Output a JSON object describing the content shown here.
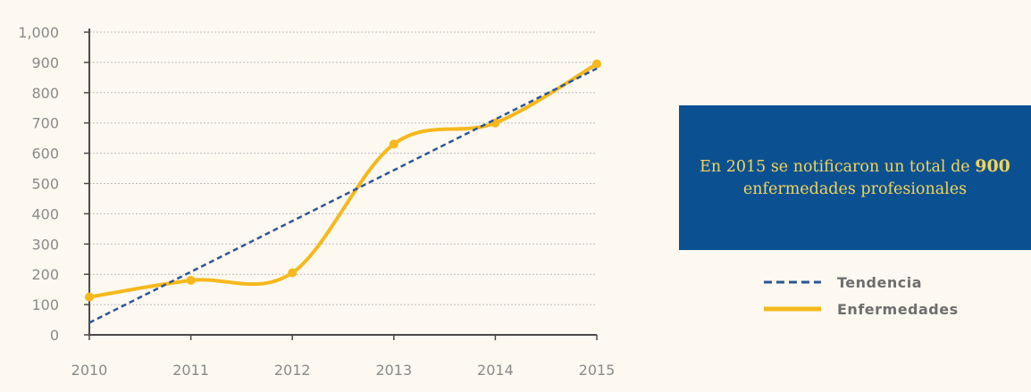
{
  "chart_data": {
    "type": "line",
    "x": [
      "2010",
      "2011",
      "2012",
      "2013",
      "2014",
      "2015"
    ],
    "y_ticks": [
      "0",
      "100",
      "200",
      "300",
      "400",
      "500",
      "600",
      "700",
      "800",
      "900",
      "1,000"
    ],
    "ylim": [
      0,
      1000
    ],
    "grid": true,
    "legend_position": "right",
    "series": [
      {
        "name": "Tendencia",
        "style": "dashed",
        "color": "#2f5596",
        "values": [
          40,
          208,
          376,
          544,
          712,
          880
        ]
      },
      {
        "name": "Enfermedades",
        "style": "solid",
        "color": "#f6b81c",
        "values": [
          125,
          180,
          205,
          630,
          700,
          895
        ]
      }
    ]
  },
  "callout": {
    "text_before": "En 2015 se notificaron un total de ",
    "highlight": "900",
    "text_after": " enfermedades profesionales"
  },
  "colors": {
    "background": "#fdf9f1",
    "callout_bg": "#0b5192",
    "callout_text": "#f3d35a",
    "grid": "#bdbdbd",
    "axis": "#4a4a4a"
  }
}
